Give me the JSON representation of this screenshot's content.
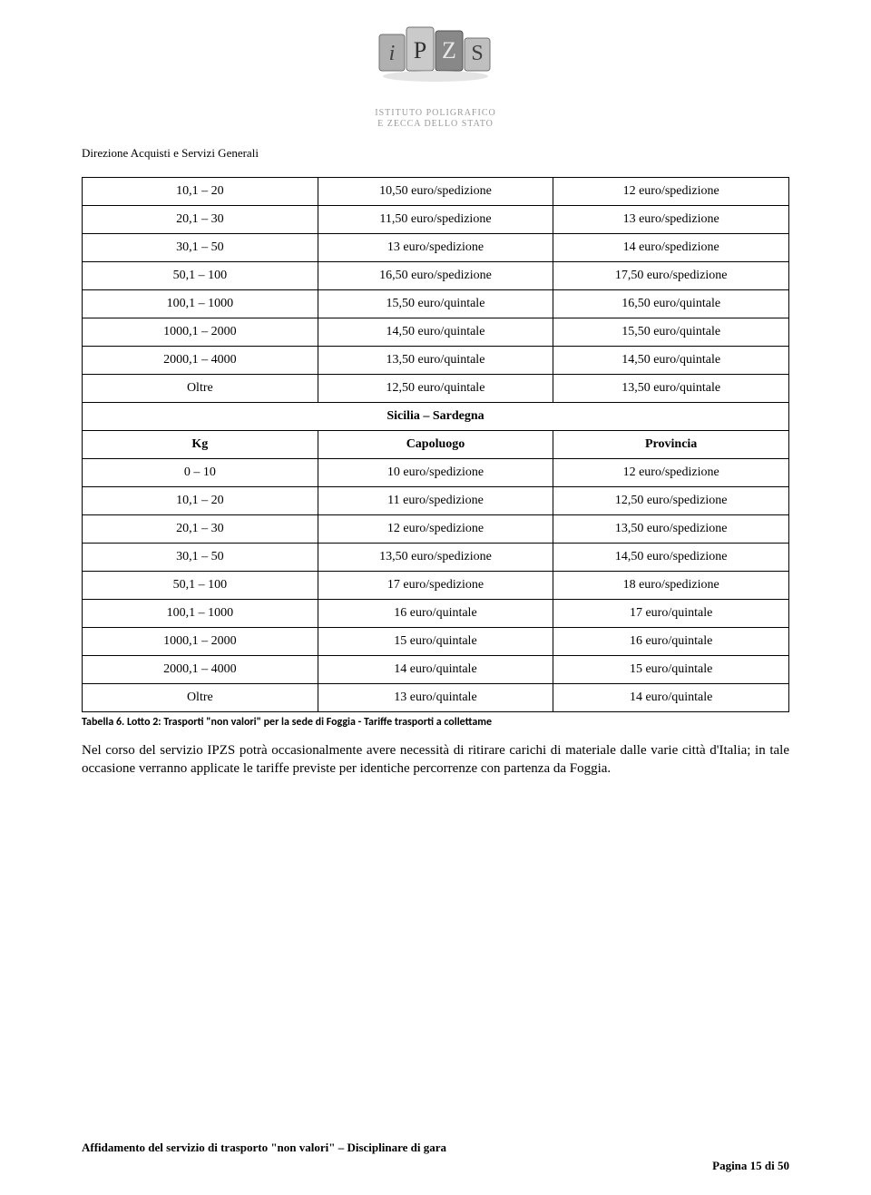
{
  "logo_sub_line1": "ISTITUTO POLIGRAFICO",
  "logo_sub_line2": "E ZECCA DELLO STATO",
  "department": "Direzione Acquisti e Servizi Generali",
  "table1": {
    "rows": [
      [
        "10,1 – 20",
        "10,50 euro/spedizione",
        "12 euro/spedizione"
      ],
      [
        "20,1 – 30",
        "11,50 euro/spedizione",
        "13 euro/spedizione"
      ],
      [
        "30,1 – 50",
        "13 euro/spedizione",
        "14 euro/spedizione"
      ],
      [
        "50,1 – 100",
        "16,50 euro/spedizione",
        "17,50 euro/spedizione"
      ],
      [
        "100,1 – 1000",
        "15,50 euro/quintale",
        "16,50 euro/quintale"
      ],
      [
        "1000,1 – 2000",
        "14,50 euro/quintale",
        "15,50 euro/quintale"
      ],
      [
        "2000,1 – 4000",
        "13,50 euro/quintale",
        "14,50 euro/quintale"
      ],
      [
        "Oltre",
        "12,50 euro/quintale",
        "13,50 euro/quintale"
      ]
    ]
  },
  "section_title": "Sicilia – Sardegna",
  "table2": {
    "header": [
      "Kg",
      "Capoluogo",
      "Provincia"
    ],
    "rows": [
      [
        "0 – 10",
        "10 euro/spedizione",
        "12 euro/spedizione"
      ],
      [
        "10,1 – 20",
        "11 euro/spedizione",
        "12,50 euro/spedizione"
      ],
      [
        "20,1 – 30",
        "12 euro/spedizione",
        "13,50 euro/spedizione"
      ],
      [
        "30,1 – 50",
        "13,50 euro/spedizione",
        "14,50 euro/spedizione"
      ],
      [
        "50,1 – 100",
        "17 euro/spedizione",
        "18 euro/spedizione"
      ],
      [
        "100,1 – 1000",
        "16 euro/quintale",
        "17 euro/quintale"
      ],
      [
        "1000,1 – 2000",
        "15 euro/quintale",
        "16 euro/quintale"
      ],
      [
        "2000,1 – 4000",
        "14 euro/quintale",
        "15 euro/quintale"
      ],
      [
        "Oltre",
        "13 euro/quintale",
        "14 euro/quintale"
      ]
    ]
  },
  "caption": "Tabella 6. Lotto 2: Trasporti \"non valori\" per la sede di Foggia - Tariffe trasporti a collettame",
  "paragraph": "Nel corso del servizio IPZS potrà occasionalmente avere necessità di ritirare carichi di materiale dalle varie città d'Italia; in tale occasione verranno applicate le tariffe previste per identiche percorrenze con partenza da Foggia.",
  "footer": "Affidamento del servizio di trasporto \"non valori\" – Disciplinare di gara",
  "page_num": "Pagina 15 di 50",
  "colors": {
    "text": "#000000",
    "bg": "#ffffff",
    "logo_gray": "#9a9a9a",
    "border": "#000000"
  },
  "fontsizes": {
    "body": 15,
    "table": 14,
    "caption": 12,
    "dept": 13,
    "footer": 13
  }
}
